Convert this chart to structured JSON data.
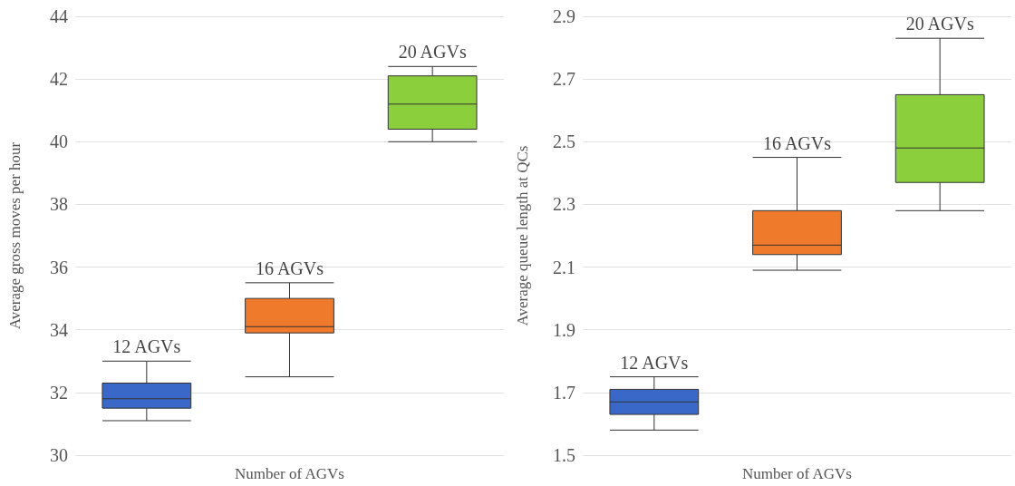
{
  "chart_data": [
    {
      "type": "box",
      "categories": [
        null,
        null,
        null
      ],
      "xlabel": "Number of AGVs",
      "ylabel": "Average gross moves per hour",
      "ylim": [
        30,
        44
      ],
      "yticks": [
        30,
        32,
        34,
        36,
        38,
        40,
        42,
        44
      ],
      "grid": "y",
      "tick_labels": "y",
      "colors": [
        "#3a68c8",
        "#ef7a2c",
        "#8ccf3c"
      ],
      "boxes": [
        {
          "low": 31.1,
          "q1": 31.5,
          "median": 31.8,
          "q3": 32.3,
          "high": 33.0
        },
        {
          "low": 32.5,
          "q1": 33.9,
          "median": 34.1,
          "q3": 35.0,
          "high": 35.5
        },
        {
          "low": 40.0,
          "q1": 40.4,
          "median": 41.2,
          "q3": 42.1,
          "high": 42.4
        }
      ],
      "annotations": [
        "12 AGVs",
        "16 AGVs",
        "20 AGVs"
      ]
    },
    {
      "type": "box",
      "categories": [
        null,
        null,
        null
      ],
      "xlabel": "Number of AGVs",
      "ylabel": "Average queue length at QCs",
      "ylim": [
        1.5,
        2.9
      ],
      "yticks": [
        1.5,
        1.7,
        1.9,
        2.1,
        2.3,
        2.5,
        2.7,
        2.9
      ],
      "grid": "y",
      "tick_labels": "y",
      "colors": [
        "#3a68c8",
        "#ef7a2c",
        "#8ccf3c"
      ],
      "boxes": [
        {
          "low": 1.58,
          "q1": 1.63,
          "median": 1.67,
          "q3": 1.71,
          "high": 1.75
        },
        {
          "low": 2.09,
          "q1": 2.14,
          "median": 2.17,
          "q3": 2.28,
          "high": 2.45
        },
        {
          "low": 2.28,
          "q1": 2.37,
          "median": 2.48,
          "q3": 2.65,
          "high": 2.83
        }
      ],
      "annotations": [
        "12 AGVs",
        "16 AGVs",
        "20 AGVs"
      ]
    }
  ]
}
